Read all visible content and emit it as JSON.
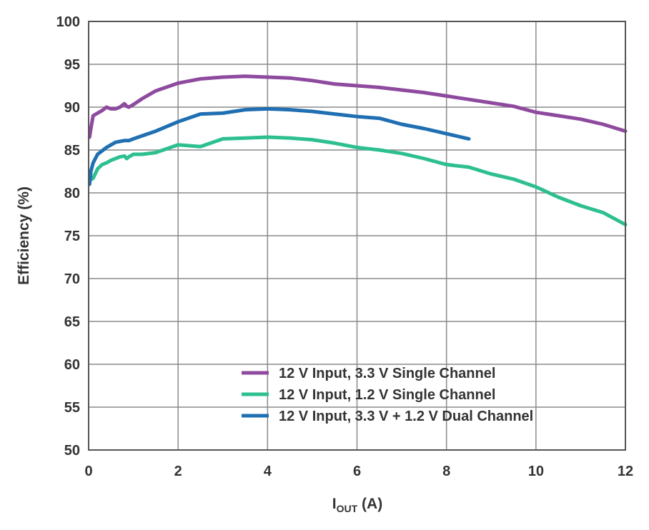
{
  "chart_data": {
    "type": "line",
    "xlabel": {
      "main": "I",
      "sub": "OUT",
      "unit": " (A)"
    },
    "ylabel": "Efficiency (%)",
    "xlim": [
      0,
      12
    ],
    "ylim": [
      50,
      100
    ],
    "x_ticks": [
      "0",
      "2",
      "4",
      "6",
      "8",
      "10",
      "12"
    ],
    "y_ticks": [
      "50",
      "55",
      "60",
      "65",
      "70",
      "75",
      "80",
      "85",
      "90",
      "95",
      "100"
    ],
    "grid": true,
    "legend_position": "bottom-right",
    "series": [
      {
        "name": "12 V Input, 3.3 V Single Channel",
        "color": "#8e4a9e",
        "x": [
          0.02,
          0.05,
          0.1,
          0.2,
          0.3,
          0.4,
          0.5,
          0.6,
          0.7,
          0.8,
          0.85,
          0.9,
          1.0,
          1.2,
          1.5,
          2.0,
          2.5,
          3.0,
          3.5,
          4.0,
          4.5,
          5.0,
          5.5,
          6.0,
          6.5,
          7.0,
          7.5,
          8.0,
          8.5,
          9.0,
          9.5,
          10.0,
          10.5,
          11.0,
          11.5,
          12.0
        ],
        "y": [
          86.5,
          87.5,
          89.0,
          89.3,
          89.6,
          90.0,
          89.8,
          89.8,
          90.0,
          90.4,
          90.1,
          90.0,
          90.3,
          91.0,
          91.9,
          92.8,
          93.3,
          93.5,
          93.6,
          93.5,
          93.4,
          93.1,
          92.7,
          92.5,
          92.3,
          92.0,
          91.7,
          91.3,
          90.9,
          90.5,
          90.1,
          89.4,
          89.0,
          88.6,
          88.0,
          87.2
        ]
      },
      {
        "name": "12 V Input, 1.2 V Single Channel",
        "color": "#2ebf91",
        "x": [
          0.02,
          0.1,
          0.2,
          0.3,
          0.4,
          0.5,
          0.6,
          0.7,
          0.8,
          0.85,
          0.9,
          1.0,
          1.2,
          1.5,
          2.0,
          2.5,
          3.0,
          3.5,
          4.0,
          4.5,
          5.0,
          5.5,
          6.0,
          6.5,
          7.0,
          7.5,
          8.0,
          8.5,
          9.0,
          9.5,
          10.0,
          10.5,
          11.0,
          11.5,
          12.0
        ],
        "y": [
          81.5,
          81.7,
          82.8,
          83.3,
          83.5,
          83.8,
          84.0,
          84.2,
          84.3,
          84.0,
          84.2,
          84.5,
          84.5,
          84.7,
          85.6,
          85.4,
          86.3,
          86.4,
          86.5,
          86.4,
          86.2,
          85.8,
          85.3,
          85.0,
          84.6,
          84.0,
          83.3,
          83.0,
          82.2,
          81.6,
          80.7,
          79.5,
          78.5,
          77.7,
          76.3
        ]
      },
      {
        "name": "12 V Input, 3.3 V + 1.2 V Dual Channel",
        "color": "#1f6fb2",
        "x": [
          0.02,
          0.05,
          0.1,
          0.2,
          0.3,
          0.4,
          0.5,
          0.6,
          0.7,
          0.8,
          0.9,
          1.0,
          1.5,
          2.0,
          2.5,
          3.0,
          3.5,
          4.0,
          4.5,
          5.0,
          5.5,
          6.0,
          6.5,
          7.0,
          7.5,
          8.0,
          8.5
        ],
        "y": [
          81.0,
          82.5,
          83.5,
          84.5,
          84.9,
          85.3,
          85.6,
          85.9,
          86.0,
          86.1,
          86.1,
          86.3,
          87.2,
          88.3,
          89.2,
          89.3,
          89.7,
          89.8,
          89.7,
          89.5,
          89.2,
          88.9,
          88.7,
          88.0,
          87.5,
          86.9,
          86.3
        ]
      }
    ]
  }
}
